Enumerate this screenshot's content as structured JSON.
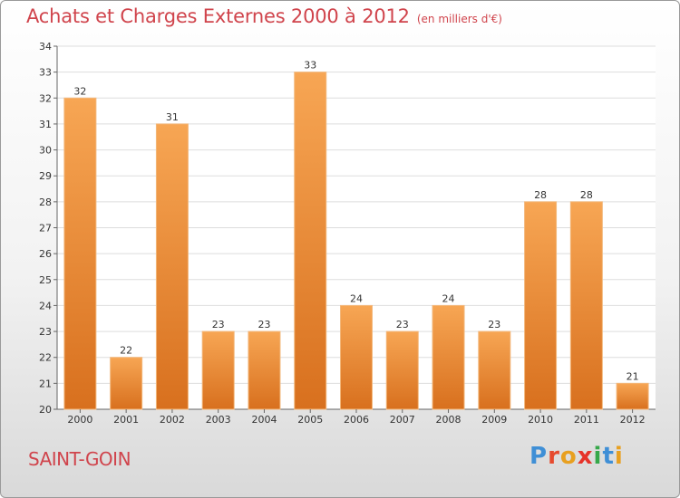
{
  "header": {
    "title": "Achats et Charges Externes 2000 à 2012",
    "subtitle": "(en milliers d'€)"
  },
  "footer": {
    "town": "SAINT-GOIN",
    "logo": [
      "P",
      "r",
      "o",
      "x",
      "i",
      "t",
      "i"
    ]
  },
  "colors": {
    "title": "#d0444c",
    "bar_top": "#f7a654",
    "bar_bottom": "#d8701e",
    "bar_edge": "#f3b77a",
    "grid": "#dddddd"
  },
  "chart_data": {
    "type": "bar",
    "title": "Achats et Charges Externes 2000 à 2012",
    "subtitle": "(en milliers d'€)",
    "xlabel": "",
    "ylabel": "",
    "categories": [
      "2000",
      "2001",
      "2002",
      "2003",
      "2004",
      "2005",
      "2006",
      "2007",
      "2008",
      "2009",
      "2010",
      "2011",
      "2012"
    ],
    "values": [
      32,
      22,
      31,
      23,
      23,
      33,
      24,
      23,
      24,
      23,
      28,
      28,
      21
    ],
    "data_labels": [
      "32",
      "22",
      "31",
      "23",
      "23",
      "33",
      "24",
      "23",
      "24",
      "23",
      "28",
      "28",
      "21"
    ],
    "ylim": [
      20,
      34
    ],
    "yticks": [
      20,
      21,
      22,
      23,
      24,
      25,
      26,
      27,
      28,
      29,
      30,
      31,
      32,
      33,
      34
    ],
    "grid": true,
    "legend": "none"
  }
}
